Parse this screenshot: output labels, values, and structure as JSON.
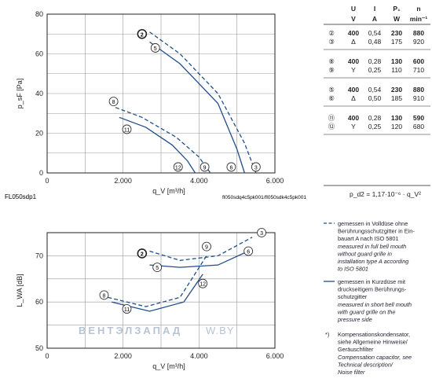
{
  "chart_data": [
    {
      "type": "line",
      "ylabel": "p_sF [Pa]",
      "xlabel": "q_V [m³/h]",
      "xlim": [
        0,
        6000
      ],
      "ylim": [
        0,
        80
      ],
      "xticks": [
        "0",
        "2.000",
        "4.000",
        "6.000"
      ],
      "yticks": [
        "0",
        "20",
        "40",
        "60",
        "80"
      ],
      "footer_left": "FL050sdp1",
      "footer_right": "fl050sdq4c5pk001/fl050sdk4c5pk001",
      "grid": true,
      "series": [
        {
          "name": "2",
          "style": "dashed",
          "x": [
            2700,
            3500,
            4500,
            5200,
            5500
          ],
          "y": [
            71,
            60,
            40,
            15,
            0
          ]
        },
        {
          "name": "5",
          "style": "solid",
          "x": [
            2700,
            3500,
            4500,
            5000,
            5200
          ],
          "y": [
            66,
            55,
            35,
            12,
            0
          ]
        },
        {
          "name": "8",
          "style": "dashed",
          "x": [
            1800,
            2500,
            3400,
            4000,
            4300
          ],
          "y": [
            33,
            28,
            18,
            8,
            0
          ]
        },
        {
          "name": "11",
          "style": "solid",
          "x": [
            1900,
            2600,
            3300,
            3700,
            3900
          ],
          "y": [
            28,
            23,
            14,
            6,
            0
          ]
        }
      ],
      "markers": [
        {
          "label": "2",
          "x": 2500,
          "y": 70,
          "bold": true
        },
        {
          "label": "5",
          "x": 2850,
          "y": 63
        },
        {
          "label": "8",
          "x": 1750,
          "y": 36
        },
        {
          "label": "11",
          "x": 2100,
          "y": 22
        },
        {
          "label": "12",
          "x": 3450,
          "y": 3
        },
        {
          "label": "9",
          "x": 4150,
          "y": 3
        },
        {
          "label": "6",
          "x": 4850,
          "y": 3
        },
        {
          "label": "3",
          "x": 5500,
          "y": 3
        }
      ]
    },
    {
      "type": "line",
      "ylabel": "L_WA [dB]",
      "xlabel": "q_V [m³/h]",
      "xlim": [
        0,
        6000
      ],
      "ylim": [
        50,
        75
      ],
      "xticks": [
        "0",
        "2.000",
        "4.000",
        "6.000"
      ],
      "yticks": [
        "50",
        "60",
        "70"
      ],
      "grid": true,
      "series": [
        {
          "name": "2",
          "style": "dashed",
          "x": [
            2700,
            3500,
            4500,
            5400
          ],
          "y": [
            71,
            69,
            70,
            74
          ]
        },
        {
          "name": "5",
          "style": "solid",
          "x": [
            2700,
            3500,
            4500,
            5300
          ],
          "y": [
            68,
            67.5,
            68,
            71
          ]
        },
        {
          "name": "8",
          "style": "dashed",
          "x": [
            1600,
            2600,
            3500,
            4200
          ],
          "y": [
            61,
            59,
            61,
            70
          ]
        },
        {
          "name": "11",
          "style": "solid",
          "x": [
            1700,
            2700,
            3600,
            4100
          ],
          "y": [
            60,
            58,
            60,
            66
          ]
        }
      ],
      "markers": [
        {
          "label": "2",
          "x": 2500,
          "y": 70.5,
          "bold": true
        },
        {
          "label": "5",
          "x": 2900,
          "y": 67.5
        },
        {
          "label": "8",
          "x": 1500,
          "y": 61.5
        },
        {
          "label": "11",
          "x": 2100,
          "y": 58.5
        },
        {
          "label": "9",
          "x": 4200,
          "y": 72
        },
        {
          "label": "12",
          "x": 4100,
          "y": 64
        },
        {
          "label": "6",
          "x": 5300,
          "y": 71
        },
        {
          "label": "3",
          "x": 5650,
          "y": 75
        }
      ]
    }
  ],
  "watermark": "ВЕНТЭЛЗАПАД",
  "watermark_suffix": "W.BY",
  "table": {
    "header": [
      "U",
      "I",
      "P₁",
      "n"
    ],
    "units": [
      "V",
      "A",
      "W",
      "min⁻¹"
    ],
    "groups": [
      [
        [
          "②",
          "400",
          "0,54",
          "230",
          "880"
        ],
        [
          "③",
          "Δ",
          "0,48",
          "175",
          "920"
        ]
      ],
      [
        [
          "⑧",
          "400",
          "0,28",
          "130",
          "600"
        ],
        [
          "⑨",
          "Y",
          "0,25",
          "110",
          "710"
        ]
      ],
      [
        [
          "⑤",
          "400",
          "0,54",
          "230",
          "880"
        ],
        [
          "⑥",
          "Δ",
          "0,50",
          "185",
          "910"
        ]
      ],
      [
        [
          "⑪",
          "400",
          "0,28",
          "130",
          "590"
        ],
        [
          "⑫",
          "Y",
          "0,25",
          "120",
          "680"
        ]
      ]
    ]
  },
  "formula": "p_d2 = 1,17·10⁻⁶ · q_V²",
  "legend": {
    "dashed_lines": [
      "gemessen in Volldüse ohne",
      "Berührungsschutzgitter in Ein-",
      "bauart A nach ISO 5801",
      "measured in full bell mouth",
      "without guard grille in",
      "installation type A according",
      "to ISO 5801"
    ],
    "solid_lines": [
      "gemessen in Kurzdüse mit",
      "druckseitigem Berührungs-",
      "schutzgitter",
      "measured in short bell mouth",
      "with guard grille on the",
      "pressure side"
    ],
    "footnote_mark": "*)",
    "footnote": [
      "Kompensationskondensator,",
      "siehe Allgemeine Hinweise/",
      "Geräuschfilter",
      "Compensation capacitor, see",
      "Technical description/",
      "Noise filter"
    ]
  },
  "colors": {
    "curve": "#1e4e8c",
    "axis": "#222222",
    "grid": "#9a9a9a",
    "watermark": "#b8c4d4"
  }
}
